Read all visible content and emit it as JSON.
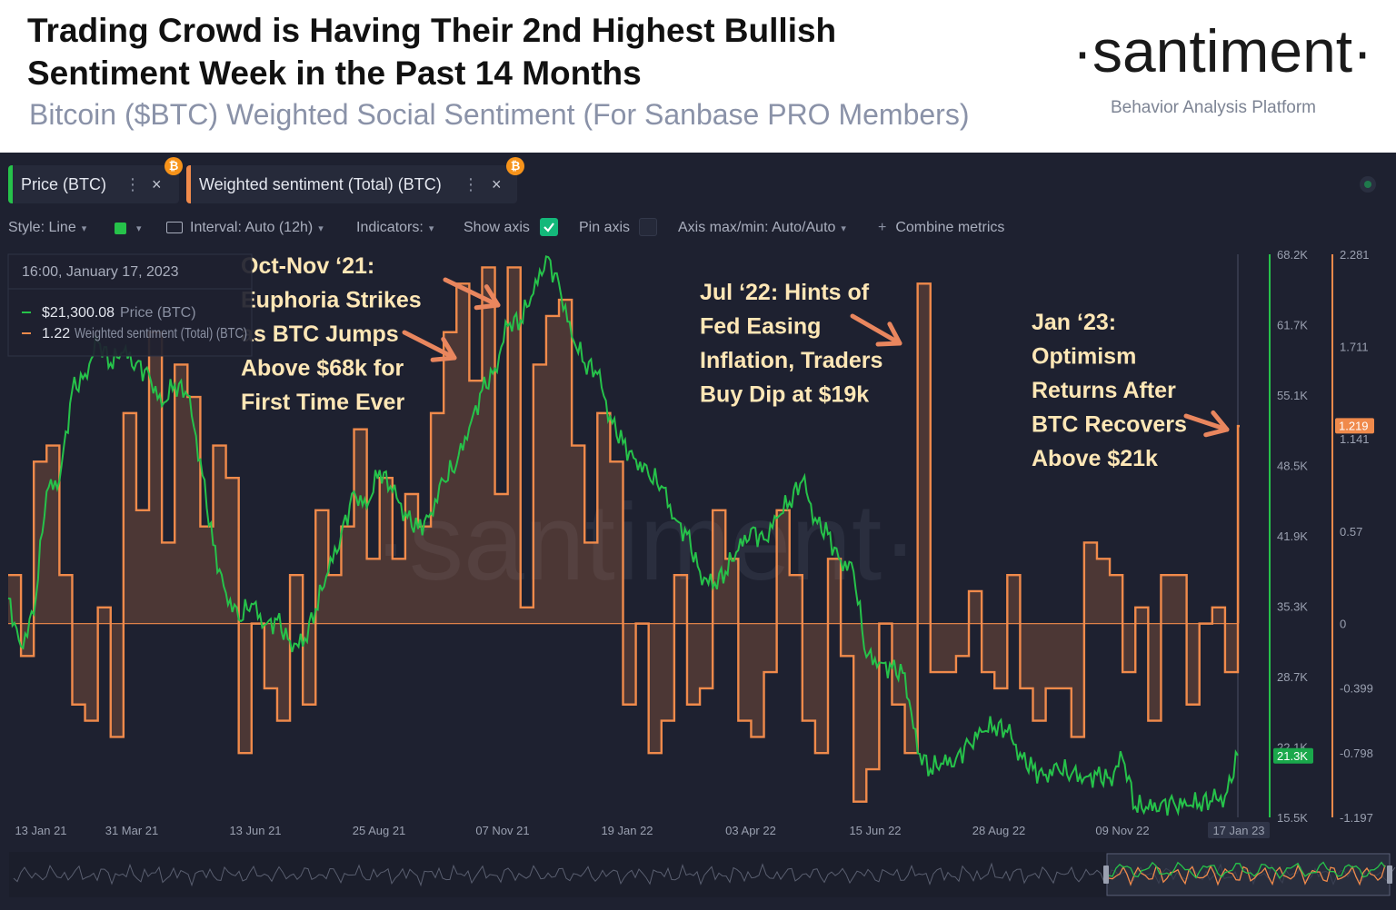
{
  "header": {
    "title_line1": "Trading Crowd is Having Their 2nd Highest Bullish",
    "title_line2": "Sentiment Week in the Past 14 Months",
    "subtitle": "Bitcoin ($BTC) Weighted Social Sentiment (For Sanbase PRO Members)",
    "logo": "·santiment·",
    "logo_tagline": "Behavior Analysis Platform",
    "watermark": "·santiment·"
  },
  "tabs": [
    {
      "label": "Price (BTC)",
      "color": "#26c24a",
      "badge": "₿"
    },
    {
      "label": "Weighted sentiment (Total) (BTC)",
      "color": "#f08a4b",
      "badge": "₿"
    }
  ],
  "toolbar": {
    "style": "Style: Line",
    "interval": "Interval: Auto (12h)",
    "indicators": "Indicators:",
    "show_axis": "Show axis",
    "pin_axis": "Pin axis",
    "axis_minmax": "Axis max/min: Auto/Auto",
    "combine_plus": "+",
    "combine": "Combine metrics"
  },
  "tooltip": {
    "date": "16:00, January 17, 2023",
    "price_value": "$21,300.08",
    "price_label": "Price (BTC)",
    "sentiment_value": "1.22",
    "sentiment_label": "Weighted sentiment (Total) (BTC)"
  },
  "annotations": [
    {
      "lines": [
        "Oct-Nov ‘21:",
        "Euphoria Strikes",
        "as BTC Jumps",
        "Above $68k for",
        "First Time Ever"
      ]
    },
    {
      "lines": [
        "Jul ‘22: Hints of",
        "Fed Easing",
        "Inflation, Traders",
        "Buy Dip at $19k"
      ]
    },
    {
      "lines": [
        "Jan ‘23:",
        "Optimism",
        "Returns After",
        "BTC Recovers",
        "Above $21k"
      ]
    }
  ],
  "chart_data": {
    "type": "line",
    "title": "Bitcoin ($BTC) Weighted Social Sentiment",
    "x_tick_labels": [
      "13 Jan 21",
      "31 Mar 21",
      "13 Jun 21",
      "25 Aug 21",
      "07 Nov 21",
      "19 Jan 22",
      "03 Apr 22",
      "15 Jun 22",
      "28 Aug 22",
      "09 Nov 22",
      "17 Jan 23"
    ],
    "price_axis": {
      "ticks": [
        "68.2K",
        "61.7K",
        "55.1K",
        "48.5K",
        "41.9K",
        "35.3K",
        "28.7K",
        "22.1K",
        "15.5K"
      ],
      "min": 15500,
      "max": 68200,
      "current_label": "21.3K"
    },
    "sentiment_axis": {
      "ticks": [
        "2.281",
        "1.711",
        "1.141",
        "0.57",
        "0",
        "-0.399",
        "-0.798",
        "-1.197"
      ],
      "min": -1.197,
      "max": 2.281,
      "current_label": "1.219"
    },
    "series": [
      {
        "name": "Price (BTC)",
        "color": "#26c24a",
        "style": "line",
        "points": [
          [
            0,
            36000
          ],
          [
            2,
            31500
          ],
          [
            4,
            34500
          ],
          [
            6,
            46000
          ],
          [
            8,
            47000
          ],
          [
            10,
            55500
          ],
          [
            12,
            57000
          ],
          [
            14,
            60000
          ],
          [
            16,
            58000
          ],
          [
            18,
            59000
          ],
          [
            20,
            58000
          ],
          [
            22,
            57000
          ],
          [
            24,
            54000
          ],
          [
            26,
            56000
          ],
          [
            28,
            55000
          ],
          [
            30,
            49000
          ],
          [
            32,
            41000
          ],
          [
            34,
            36500
          ],
          [
            36,
            34000
          ],
          [
            38,
            35500
          ],
          [
            40,
            33500
          ],
          [
            42,
            34000
          ],
          [
            44,
            32000
          ],
          [
            46,
            31500
          ],
          [
            48,
            35000
          ],
          [
            50,
            38500
          ],
          [
            52,
            42000
          ],
          [
            54,
            46000
          ],
          [
            56,
            44500
          ],
          [
            58,
            48000
          ],
          [
            60,
            46000
          ],
          [
            62,
            44000
          ],
          [
            64,
            42500
          ],
          [
            66,
            44000
          ],
          [
            68,
            47000
          ],
          [
            70,
            48500
          ],
          [
            72,
            52000
          ],
          [
            74,
            55500
          ],
          [
            76,
            57500
          ],
          [
            78,
            61500
          ],
          [
            80,
            62000
          ],
          [
            82,
            64500
          ],
          [
            84,
            68000
          ],
          [
            86,
            65500
          ],
          [
            88,
            60500
          ],
          [
            90,
            58000
          ],
          [
            92,
            57000
          ],
          [
            94,
            53000
          ],
          [
            96,
            50500
          ],
          [
            98,
            49000
          ],
          [
            100,
            47500
          ],
          [
            102,
            46500
          ],
          [
            104,
            43500
          ],
          [
            106,
            42000
          ],
          [
            108,
            38500
          ],
          [
            110,
            37000
          ],
          [
            112,
            38500
          ],
          [
            114,
            40500
          ],
          [
            116,
            42500
          ],
          [
            118,
            41500
          ],
          [
            120,
            43500
          ],
          [
            122,
            45000
          ],
          [
            124,
            47000
          ],
          [
            126,
            43500
          ],
          [
            128,
            42000
          ],
          [
            130,
            39500
          ],
          [
            132,
            38500
          ],
          [
            134,
            30500
          ],
          [
            136,
            30000
          ],
          [
            138,
            29500
          ],
          [
            140,
            29000
          ],
          [
            142,
            21500
          ],
          [
            144,
            20000
          ],
          [
            146,
            20500
          ],
          [
            148,
            21000
          ],
          [
            150,
            22500
          ],
          [
            152,
            23500
          ],
          [
            154,
            24000
          ],
          [
            156,
            23500
          ],
          [
            158,
            21500
          ],
          [
            160,
            20000
          ],
          [
            162,
            19500
          ],
          [
            164,
            20000
          ],
          [
            166,
            19500
          ],
          [
            168,
            19200
          ],
          [
            170,
            19500
          ],
          [
            172,
            19200
          ],
          [
            174,
            21000
          ],
          [
            176,
            16500
          ],
          [
            178,
            16300
          ],
          [
            180,
            16800
          ],
          [
            182,
            16900
          ],
          [
            184,
            16600
          ],
          [
            186,
            16800
          ],
          [
            188,
            17000
          ],
          [
            190,
            17500
          ],
          [
            192,
            21300
          ]
        ]
      },
      {
        "name": "Weighted sentiment (Total) (BTC)",
        "color": "#f08a4b",
        "style": "step",
        "points": [
          [
            0,
            0.3
          ],
          [
            2,
            -0.2
          ],
          [
            4,
            1.0
          ],
          [
            6,
            1.1
          ],
          [
            8,
            0.3
          ],
          [
            10,
            -0.5
          ],
          [
            12,
            -0.6
          ],
          [
            14,
            0.1
          ],
          [
            16,
            -0.7
          ],
          [
            18,
            1.3
          ],
          [
            20,
            0.7
          ],
          [
            22,
            1.8
          ],
          [
            24,
            0.5
          ],
          [
            26,
            1.6
          ],
          [
            28,
            1.4
          ],
          [
            30,
            0.6
          ],
          [
            32,
            1.1
          ],
          [
            34,
            0.9
          ],
          [
            36,
            -0.8
          ],
          [
            38,
            0.0
          ],
          [
            40,
            -0.4
          ],
          [
            42,
            -0.6
          ],
          [
            44,
            0.3
          ],
          [
            46,
            -0.5
          ],
          [
            48,
            0.7
          ],
          [
            50,
            0.3
          ],
          [
            52,
            0.6
          ],
          [
            54,
            1.2
          ],
          [
            56,
            0.4
          ],
          [
            58,
            0.9
          ],
          [
            60,
            0.4
          ],
          [
            62,
            0.8
          ],
          [
            64,
            0.6
          ],
          [
            66,
            1.3
          ],
          [
            68,
            1.8
          ],
          [
            70,
            2.1
          ],
          [
            72,
            1.5
          ],
          [
            74,
            2.2
          ],
          [
            76,
            0.8
          ],
          [
            78,
            2.2
          ],
          [
            80,
            0.1
          ],
          [
            82,
            1.6
          ],
          [
            84,
            1.9
          ],
          [
            86,
            2.0
          ],
          [
            88,
            1.1
          ],
          [
            90,
            0.5
          ],
          [
            92,
            1.3
          ],
          [
            94,
            1.0
          ],
          [
            96,
            -0.5
          ],
          [
            98,
            0.0
          ],
          [
            100,
            -0.8
          ],
          [
            102,
            -0.6
          ],
          [
            104,
            0.3
          ],
          [
            106,
            -0.5
          ],
          [
            108,
            -0.4
          ],
          [
            110,
            0.7
          ],
          [
            112,
            0.4
          ],
          [
            114,
            -0.6
          ],
          [
            116,
            -0.7
          ],
          [
            118,
            -0.3
          ],
          [
            120,
            0.7
          ],
          [
            122,
            0.3
          ],
          [
            124,
            -0.6
          ],
          [
            126,
            -0.8
          ],
          [
            128,
            0.4
          ],
          [
            130,
            -0.2
          ],
          [
            132,
            -1.1
          ],
          [
            134,
            -0.9
          ],
          [
            136,
            0.0
          ],
          [
            138,
            -0.5
          ],
          [
            140,
            -0.8
          ],
          [
            142,
            2.1
          ],
          [
            144,
            -0.3
          ],
          [
            146,
            -0.3
          ],
          [
            148,
            -0.2
          ],
          [
            150,
            0.2
          ],
          [
            152,
            -0.3
          ],
          [
            154,
            -0.4
          ],
          [
            156,
            0.3
          ],
          [
            158,
            -0.4
          ],
          [
            160,
            -0.6
          ],
          [
            162,
            -0.4
          ],
          [
            164,
            -0.4
          ],
          [
            166,
            -0.7
          ],
          [
            168,
            0.5
          ],
          [
            170,
            0.4
          ],
          [
            172,
            0.3
          ],
          [
            174,
            -0.3
          ],
          [
            176,
            0.1
          ],
          [
            178,
            -0.6
          ],
          [
            180,
            0.3
          ],
          [
            182,
            0.3
          ],
          [
            184,
            -0.5
          ],
          [
            186,
            0.0
          ],
          [
            188,
            0.1
          ],
          [
            190,
            -0.3
          ],
          [
            192,
            1.22
          ]
        ]
      }
    ],
    "xlabel": "",
    "ylabel": ""
  }
}
